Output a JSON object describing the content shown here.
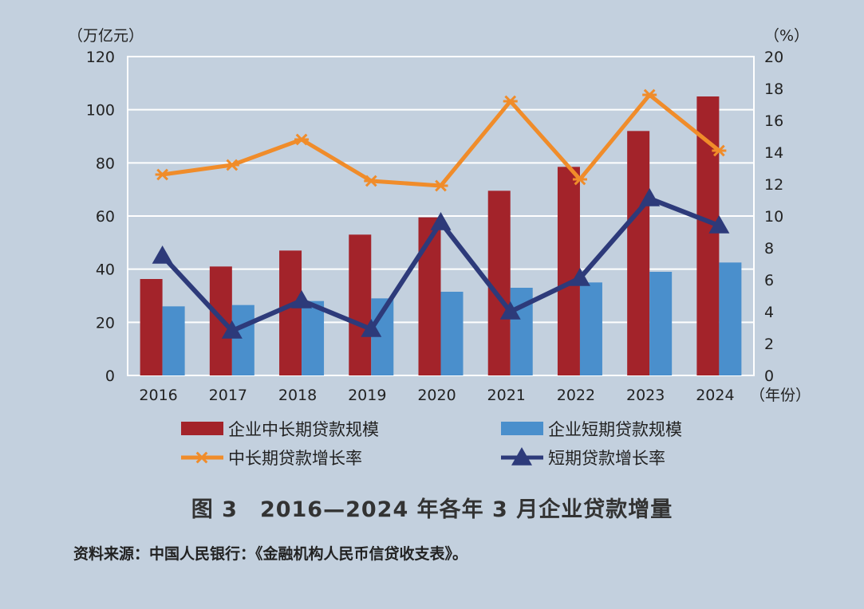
{
  "chart_data": {
    "type": "bar",
    "categories": [
      "2016",
      "2017",
      "2018",
      "2019",
      "2020",
      "2021",
      "2022",
      "2023",
      "2024"
    ],
    "x_unit": "（年份）",
    "y_left": {
      "unit": "（万亿元）",
      "ylim": [
        0,
        120
      ],
      "ticks": [
        0,
        20,
        40,
        60,
        80,
        100,
        120
      ]
    },
    "y_right": {
      "unit": "（%）",
      "ylim": [
        0,
        20
      ],
      "ticks": [
        0,
        2,
        4,
        6,
        8,
        10,
        12,
        14,
        16,
        18,
        20
      ]
    },
    "grid": "horizontal",
    "legend_position": "bottom",
    "series": [
      {
        "name": "企业中长期贷款规模",
        "kind": "bar",
        "axis": "left",
        "color": "#a3232a",
        "values": [
          36.3,
          41.0,
          47.0,
          53.0,
          59.5,
          69.5,
          78.5,
          92.0,
          105.0
        ]
      },
      {
        "name": "企业短期贷款规模",
        "kind": "bar",
        "axis": "left",
        "color": "#4a8fcc",
        "values": [
          26.0,
          26.5,
          28.0,
          29.0,
          31.5,
          33.0,
          35.0,
          39.0,
          42.5
        ]
      },
      {
        "name": "中长期贷款增长率",
        "kind": "line",
        "axis": "right",
        "marker": "asterisk",
        "color": "#f08c2a",
        "values": [
          12.6,
          13.2,
          14.8,
          12.2,
          11.9,
          17.2,
          12.3,
          17.6,
          14.1
        ]
      },
      {
        "name": "短期贷款增长率",
        "kind": "line",
        "axis": "right",
        "marker": "triangle",
        "color": "#2d3a7a",
        "values": [
          7.5,
          2.8,
          4.7,
          2.9,
          9.6,
          4.0,
          6.1,
          11.1,
          9.4
        ]
      }
    ]
  },
  "caption": "图 3　2016—2024 年各年 3 月企业贷款增量",
  "source": "资料来源：中国人民银行：《金融机构人民币信贷收支表》。"
}
